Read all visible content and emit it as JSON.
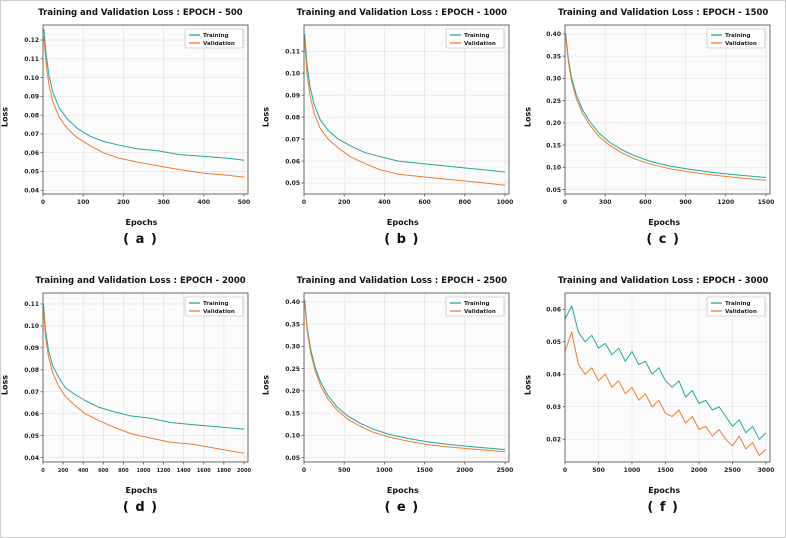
{
  "colors": {
    "training": "#26a69a",
    "validation": "#ed7d31",
    "grid": "#e2e2e2",
    "frame": "#5a5a5a",
    "plot_bg": "#fbfbfb",
    "legend_border": "#b5b5b5"
  },
  "chart_data": [
    {
      "type": "line",
      "title": "Training and Validation Loss : EPOCH - 500",
      "panel_label": "( a )",
      "xlabel": "Epochs",
      "ylabel": "Loss",
      "grid": true,
      "legend_position": "upper right",
      "xlim": [
        0,
        510
      ],
      "ylim": [
        0.038,
        0.128
      ],
      "x_ticks": [
        0,
        100,
        200,
        300,
        400,
        500
      ],
      "y_ticks": [
        0.04,
        0.05,
        0.06,
        0.07,
        0.08,
        0.09,
        0.1,
        0.11,
        0.12
      ],
      "series": [
        {
          "name": "Training",
          "color": "#26a69a",
          "x": [
            2,
            8,
            15,
            25,
            40,
            60,
            85,
            115,
            150,
            190,
            235,
            285,
            340,
            400,
            460,
            500
          ],
          "y": [
            0.126,
            0.112,
            0.101,
            0.092,
            0.084,
            0.078,
            0.073,
            0.069,
            0.066,
            0.064,
            0.062,
            0.061,
            0.059,
            0.058,
            0.057,
            0.056
          ]
        },
        {
          "name": "Validation",
          "color": "#ed7d31",
          "x": [
            2,
            8,
            15,
            25,
            40,
            60,
            85,
            115,
            150,
            190,
            235,
            285,
            340,
            400,
            460,
            500
          ],
          "y": [
            0.122,
            0.107,
            0.096,
            0.087,
            0.079,
            0.073,
            0.068,
            0.064,
            0.06,
            0.057,
            0.055,
            0.053,
            0.051,
            0.049,
            0.048,
            0.047
          ]
        }
      ]
    },
    {
      "type": "line",
      "title": "Training and Validation Loss : EPOCH - 1000",
      "panel_label": "( b )",
      "xlabel": "Epochs",
      "ylabel": "Loss",
      "grid": true,
      "legend_position": "upper right",
      "xlim": [
        0,
        1020
      ],
      "ylim": [
        0.045,
        0.122
      ],
      "x_ticks": [
        0,
        200,
        400,
        600,
        800,
        1000
      ],
      "y_ticks": [
        0.05,
        0.06,
        0.07,
        0.08,
        0.09,
        0.1,
        0.11
      ],
      "series": [
        {
          "name": "Training",
          "color": "#26a69a",
          "x": [
            3,
            15,
            30,
            50,
            80,
            120,
            170,
            230,
            300,
            380,
            470,
            570,
            680,
            790,
            900,
            1000
          ],
          "y": [
            0.118,
            0.104,
            0.094,
            0.086,
            0.079,
            0.074,
            0.07,
            0.067,
            0.064,
            0.062,
            0.06,
            0.059,
            0.058,
            0.057,
            0.056,
            0.055
          ]
        },
        {
          "name": "Validation",
          "color": "#ed7d31",
          "x": [
            3,
            15,
            30,
            50,
            80,
            120,
            170,
            230,
            300,
            380,
            470,
            570,
            680,
            790,
            900,
            1000
          ],
          "y": [
            0.115,
            0.1,
            0.09,
            0.082,
            0.075,
            0.07,
            0.066,
            0.062,
            0.059,
            0.056,
            0.054,
            0.053,
            0.052,
            0.051,
            0.05,
            0.049
          ]
        }
      ]
    },
    {
      "type": "line",
      "title": "Training and Validation Loss : EPOCH - 1500",
      "panel_label": "( c )",
      "xlabel": "Epochs",
      "ylabel": "Loss",
      "grid": true,
      "legend_position": "upper right",
      "xlim": [
        0,
        1530
      ],
      "ylim": [
        0.04,
        0.42
      ],
      "x_ticks": [
        0,
        300,
        600,
        900,
        1200,
        1500
      ],
      "y_ticks": [
        0.05,
        0.1,
        0.15,
        0.2,
        0.25,
        0.3,
        0.35,
        0.4
      ],
      "series": [
        {
          "name": "Training",
          "color": "#26a69a",
          "x": [
            5,
            25,
            50,
            85,
            130,
            185,
            250,
            330,
            420,
            520,
            640,
            780,
            940,
            1120,
            1310,
            1500
          ],
          "y": [
            0.4,
            0.345,
            0.3,
            0.262,
            0.23,
            0.203,
            0.178,
            0.157,
            0.14,
            0.126,
            0.113,
            0.103,
            0.095,
            0.088,
            0.082,
            0.077
          ]
        },
        {
          "name": "Validation",
          "color": "#ed7d31",
          "x": [
            5,
            25,
            50,
            85,
            130,
            185,
            250,
            330,
            420,
            520,
            640,
            780,
            940,
            1120,
            1310,
            1500
          ],
          "y": [
            0.396,
            0.338,
            0.292,
            0.254,
            0.222,
            0.195,
            0.17,
            0.15,
            0.133,
            0.119,
            0.107,
            0.097,
            0.089,
            0.082,
            0.076,
            0.071
          ]
        }
      ]
    },
    {
      "type": "line",
      "title": "Training and Validation Loss : EPOCH - 2000",
      "panel_label": "( d )",
      "xlabel": "Epochs",
      "ylabel": "Loss",
      "grid": true,
      "legend_position": "upper right",
      "xlim": [
        0,
        2040
      ],
      "ylim": [
        0.038,
        0.115
      ],
      "x_ticks": [
        0,
        200,
        400,
        600,
        800,
        1000,
        1200,
        1400,
        1600,
        1800,
        2000
      ],
      "y_ticks": [
        0.04,
        0.05,
        0.06,
        0.07,
        0.08,
        0.09,
        0.1,
        0.11
      ],
      "series": [
        {
          "name": "Training",
          "color": "#26a69a",
          "x": [
            5,
            25,
            55,
            95,
            150,
            220,
            310,
            420,
            550,
            700,
            870,
            1060,
            1270,
            1500,
            1740,
            2000
          ],
          "y": [
            0.11,
            0.098,
            0.089,
            0.082,
            0.077,
            0.072,
            0.069,
            0.066,
            0.063,
            0.061,
            0.059,
            0.058,
            0.056,
            0.055,
            0.054,
            0.053
          ]
        },
        {
          "name": "Validation",
          "color": "#ed7d31",
          "x": [
            5,
            25,
            55,
            95,
            150,
            220,
            310,
            420,
            550,
            700,
            870,
            1060,
            1270,
            1500,
            1740,
            2000
          ],
          "y": [
            0.108,
            0.095,
            0.086,
            0.079,
            0.073,
            0.068,
            0.064,
            0.06,
            0.057,
            0.054,
            0.051,
            0.049,
            0.047,
            0.046,
            0.044,
            0.042
          ]
        }
      ]
    },
    {
      "type": "line",
      "title": "Training and Validation Loss : EPOCH - 2500",
      "panel_label": "( e )",
      "xlabel": "Epochs",
      "ylabel": "Loss",
      "grid": true,
      "legend_position": "upper right",
      "xlim": [
        0,
        2550
      ],
      "ylim": [
        0.04,
        0.42
      ],
      "x_ticks": [
        0,
        500,
        1000,
        1500,
        2000,
        2500
      ],
      "y_ticks": [
        0.05,
        0.1,
        0.15,
        0.2,
        0.25,
        0.3,
        0.35,
        0.4
      ],
      "series": [
        {
          "name": "Training",
          "color": "#26a69a",
          "x": [
            8,
            40,
            85,
            140,
            210,
            300,
            410,
            540,
            690,
            860,
            1060,
            1290,
            1550,
            1840,
            2160,
            2500
          ],
          "y": [
            0.405,
            0.342,
            0.292,
            0.252,
            0.218,
            0.189,
            0.164,
            0.144,
            0.128,
            0.114,
            0.102,
            0.093,
            0.085,
            0.079,
            0.073,
            0.068
          ]
        },
        {
          "name": "Validation",
          "color": "#ed7d31",
          "x": [
            8,
            40,
            85,
            140,
            210,
            300,
            410,
            540,
            690,
            860,
            1060,
            1290,
            1550,
            1840,
            2160,
            2500
          ],
          "y": [
            0.4,
            0.335,
            0.284,
            0.244,
            0.21,
            0.181,
            0.157,
            0.137,
            0.121,
            0.107,
            0.096,
            0.087,
            0.079,
            0.073,
            0.068,
            0.063
          ]
        }
      ]
    },
    {
      "type": "line",
      "title": "Training and Validation Loss : EPOCH - 3000",
      "panel_label": "( f )",
      "xlabel": "Epochs",
      "ylabel": "Loss",
      "grid": true,
      "legend_position": "upper right",
      "xlim": [
        0,
        3060
      ],
      "ylim": [
        0.013,
        0.065
      ],
      "x_ticks": [
        0,
        500,
        1000,
        1500,
        2000,
        2500,
        3000
      ],
      "y_ticks": [
        0.02,
        0.03,
        0.04,
        0.05,
        0.06
      ],
      "series": [
        {
          "name": "Training",
          "color": "#26a69a",
          "x": [
            0,
            100,
            200,
            300,
            400,
            500,
            600,
            700,
            800,
            900,
            1000,
            1100,
            1200,
            1300,
            1400,
            1500,
            1600,
            1700,
            1800,
            1900,
            2000,
            2100,
            2200,
            2300,
            2400,
            2500,
            2600,
            2700,
            2800,
            2900,
            3000
          ],
          "y": [
            0.057,
            0.061,
            0.053,
            0.05,
            0.052,
            0.048,
            0.0495,
            0.046,
            0.048,
            0.044,
            0.047,
            0.043,
            0.044,
            0.04,
            0.042,
            0.038,
            0.036,
            0.038,
            0.033,
            0.035,
            0.031,
            0.032,
            0.029,
            0.03,
            0.027,
            0.024,
            0.026,
            0.022,
            0.024,
            0.02,
            0.022
          ]
        },
        {
          "name": "Validation",
          "color": "#ed7d31",
          "x": [
            0,
            100,
            200,
            300,
            400,
            500,
            600,
            700,
            800,
            900,
            1000,
            1100,
            1200,
            1300,
            1400,
            1500,
            1600,
            1700,
            1800,
            1900,
            2000,
            2100,
            2200,
            2300,
            2400,
            2500,
            2600,
            2700,
            2800,
            2900,
            3000
          ],
          "y": [
            0.047,
            0.053,
            0.043,
            0.04,
            0.042,
            0.038,
            0.04,
            0.036,
            0.038,
            0.034,
            0.036,
            0.032,
            0.034,
            0.03,
            0.032,
            0.028,
            0.027,
            0.029,
            0.025,
            0.027,
            0.023,
            0.024,
            0.021,
            0.023,
            0.02,
            0.018,
            0.021,
            0.017,
            0.019,
            0.015,
            0.017
          ]
        }
      ]
    }
  ]
}
